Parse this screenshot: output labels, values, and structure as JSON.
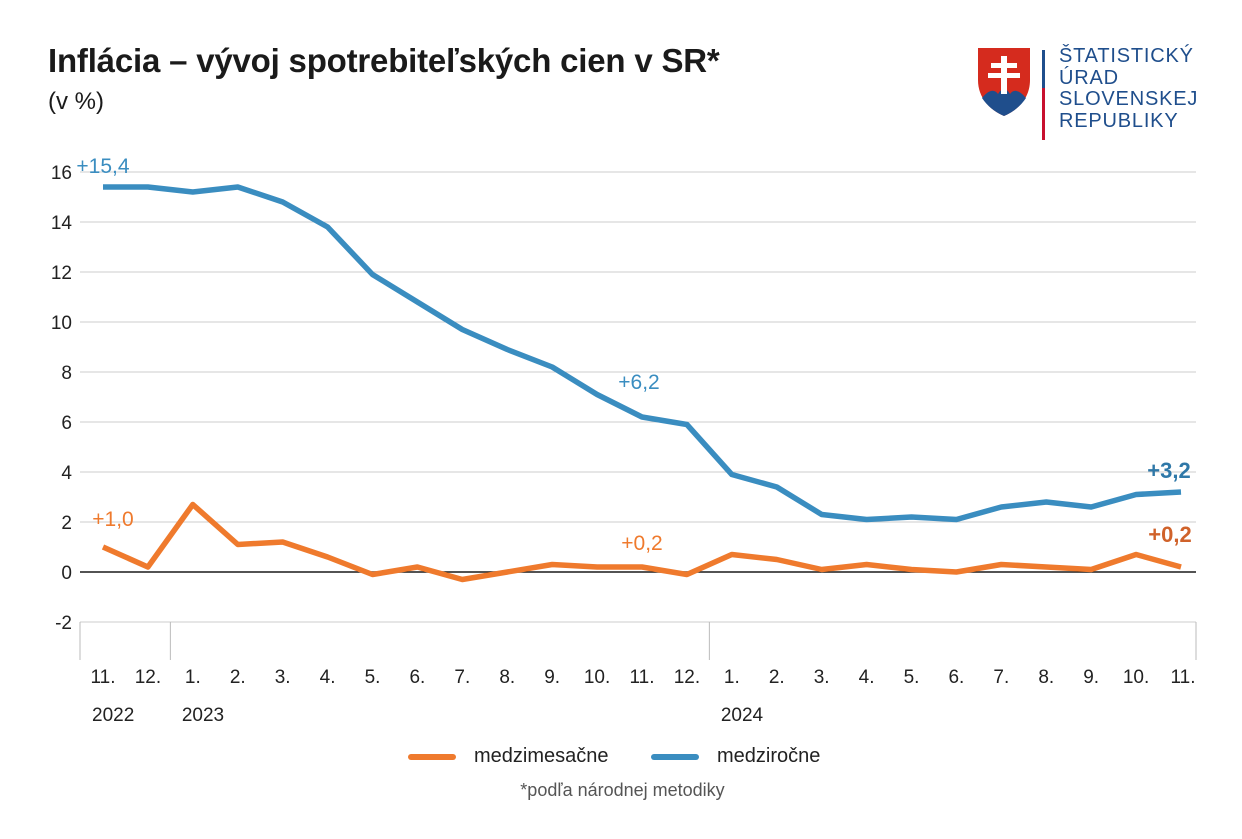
{
  "header": {
    "title": "Inflácia – vývoj spotrebiteľských cien v SR*",
    "subtitle": "(v %)"
  },
  "logo": {
    "lines": [
      "ŠTATISTICKÝ",
      "ÚRAD",
      "SLOVENSKEJ",
      "REPUBLIKY"
    ]
  },
  "footnote": "*podľa národnej metodiky",
  "colors": {
    "mom": "#ef7a2d",
    "yoy": "#3a8dc0",
    "grid": "#cccccc",
    "zero": "#1a1a1a"
  },
  "chart_data": {
    "type": "line",
    "title": "Inflácia – vývoj spotrebiteľských cien v SR*",
    "ylabel": "(v %)",
    "ylim": [
      -2,
      16
    ],
    "yticks": [
      -2,
      0,
      2,
      4,
      6,
      8,
      10,
      12,
      14,
      16
    ],
    "grid": true,
    "categories": [
      "11.",
      "12.",
      "1.",
      "2.",
      "3.",
      "4.",
      "5.",
      "6.",
      "7.",
      "8.",
      "9.",
      "10.",
      "11.",
      "12.",
      "1.",
      "2.",
      "3.",
      "4.",
      "5.",
      "6.",
      "7.",
      "8.",
      "9.",
      "10.",
      "11."
    ],
    "year_labels": [
      {
        "index": 0,
        "label": "2022"
      },
      {
        "index": 2,
        "label": "2023"
      },
      {
        "index": 14,
        "label": "2024"
      }
    ],
    "series": [
      {
        "name": "medzimesačne",
        "color_key": "mom",
        "values": [
          1.0,
          0.2,
          2.7,
          1.1,
          1.2,
          0.6,
          -0.1,
          0.2,
          -0.3,
          0.0,
          0.3,
          0.2,
          0.2,
          -0.1,
          0.7,
          0.5,
          0.1,
          0.3,
          0.1,
          0.0,
          0.3,
          0.2,
          0.1,
          0.7,
          0.2
        ]
      },
      {
        "name": "medziročne",
        "color_key": "yoy",
        "values": [
          15.4,
          15.4,
          15.2,
          15.4,
          14.8,
          13.8,
          11.9,
          10.8,
          9.7,
          8.9,
          8.2,
          7.1,
          6.2,
          5.9,
          3.9,
          3.4,
          2.3,
          2.1,
          2.2,
          2.1,
          2.6,
          2.8,
          2.6,
          3.1,
          3.2
        ]
      }
    ],
    "annotations": [
      {
        "series": 1,
        "index": 0,
        "text": "+15,4",
        "bold": false
      },
      {
        "series": 1,
        "index": 12,
        "text": "+6,2",
        "bold": false
      },
      {
        "series": 1,
        "index": 24,
        "text": "+3,2",
        "bold": true
      },
      {
        "series": 0,
        "index": 0,
        "text": "+1,0",
        "bold": false
      },
      {
        "series": 0,
        "index": 12,
        "text": "+0,2",
        "bold": false
      },
      {
        "series": 0,
        "index": 24,
        "text": "+0,2",
        "bold": true
      }
    ]
  }
}
